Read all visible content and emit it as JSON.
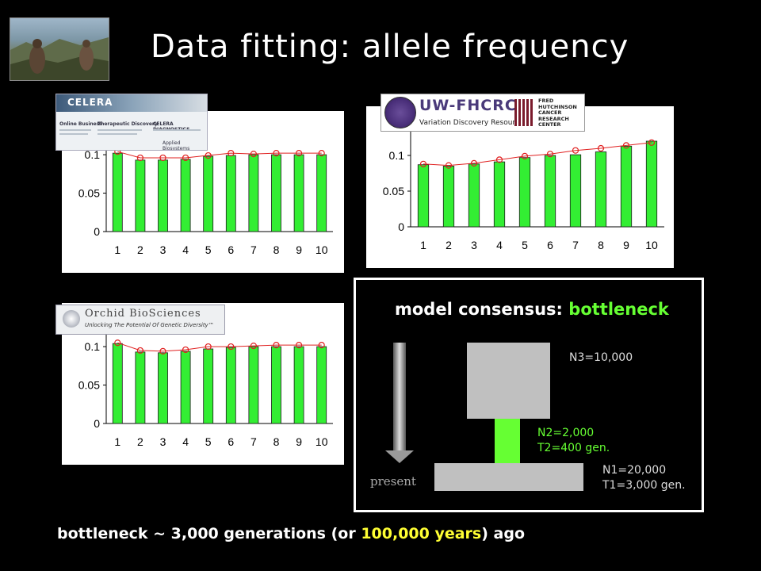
{
  "slide": {
    "title": "Data fitting: allele frequency",
    "background": "#000000"
  },
  "logos": {
    "celera": {
      "name": "CELERA",
      "sub_left_heading": "Online Business",
      "sub_mid_heading": "Therapeutic Discovery",
      "sub_right_heading": "CELERA DIAGNOSTICS",
      "applied": "Applied Biosystems"
    },
    "uw": {
      "name": "UW-FHCRC",
      "subtitle": "Variation Discovery Resource",
      "fh_text": [
        "FRED",
        "HUTCHINSON",
        "CANCER",
        "RESEARCH",
        "CENTER"
      ]
    },
    "orchid": {
      "name": "Orchid BioSciences",
      "tagline": "Unlocking The Potential Of Genetic Diversity™"
    }
  },
  "chart_data": [
    {
      "type": "bar",
      "source": "CELERA",
      "categories": [
        "1",
        "2",
        "3",
        "4",
        "5",
        "6",
        "7",
        "8",
        "9",
        "10"
      ],
      "series": [
        {
          "values": [
            0.102,
            0.093,
            0.093,
            0.094,
            0.098,
            0.099,
            0.1,
            0.1,
            0.1,
            0.1
          ]
        },
        {
          "values": [
            0.104,
            0.096,
            0.096,
            0.096,
            0.099,
            0.102,
            0.101,
            0.102,
            0.102,
            0.102
          ]
        }
      ],
      "yticks": [
        "0",
        "0.05",
        "0.1"
      ],
      "ylim": [
        0,
        0.13
      ],
      "colors": {
        "bar": "#33ee33",
        "fit": "#e02020"
      }
    },
    {
      "type": "bar",
      "source": "UW-FHCRC",
      "categories": [
        "1",
        "2",
        "3",
        "4",
        "5",
        "6",
        "7",
        "8",
        "9",
        "10"
      ],
      "series": [
        {
          "values": [
            0.087,
            0.085,
            0.088,
            0.091,
            0.097,
            0.1,
            0.101,
            0.105,
            0.113,
            0.12
          ]
        },
        {
          "values": [
            0.088,
            0.086,
            0.089,
            0.094,
            0.099,
            0.102,
            0.107,
            0.11,
            0.114,
            0.118
          ]
        }
      ],
      "yticks": [
        "0",
        "0.05",
        "0.1"
      ],
      "ylim": [
        0,
        0.14
      ],
      "colors": {
        "bar": "#33ee33",
        "fit": "#e02020"
      }
    },
    {
      "type": "bar",
      "source": "Orchid BioSciences",
      "categories": [
        "1",
        "2",
        "3",
        "4",
        "5",
        "6",
        "7",
        "8",
        "9",
        "10"
      ],
      "series": [
        {
          "values": [
            0.104,
            0.093,
            0.092,
            0.094,
            0.097,
            0.099,
            0.1,
            0.1,
            0.1,
            0.1
          ]
        },
        {
          "values": [
            0.105,
            0.095,
            0.094,
            0.096,
            0.1,
            0.1,
            0.101,
            0.102,
            0.102,
            0.102
          ]
        }
      ],
      "yticks": [
        "0",
        "0.05",
        "0.1"
      ],
      "ylim": [
        0,
        0.13
      ],
      "colors": {
        "bar": "#33ee33",
        "fit": "#e02020"
      }
    }
  ],
  "model": {
    "title_prefix": "model consensus: ",
    "title_highlight": "bottleneck",
    "highlight_color": "#66ff33",
    "pop_color": "#c0c0c0",
    "n3_label": "N3=10,000",
    "n2_label": "N2=2,000",
    "t2_label": "T2=400 gen.",
    "n1_label": "N1=20,000",
    "t1_label": "T1=3,000 gen.",
    "arrow_label": "present"
  },
  "bottom": {
    "prefix": "bottleneck ~ 3,000 generations (or ",
    "highlight": "100,000 years",
    "suffix": ") ago",
    "highlight_color": "#ffff33"
  }
}
